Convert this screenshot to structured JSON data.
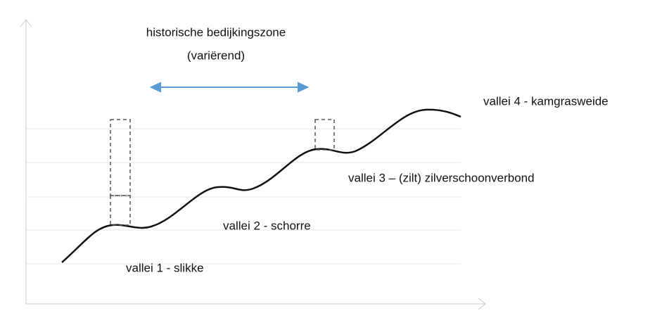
{
  "title": {
    "line1": "historische bedijkingszone",
    "line2": "(variërend)"
  },
  "labels": [
    "vallei 4 - kamgrasweide",
    "vallei 3 – (zilt) zilverschoonverbond",
    "vallei 2 - schorre",
    "vallei 1 - slikke"
  ]
}
